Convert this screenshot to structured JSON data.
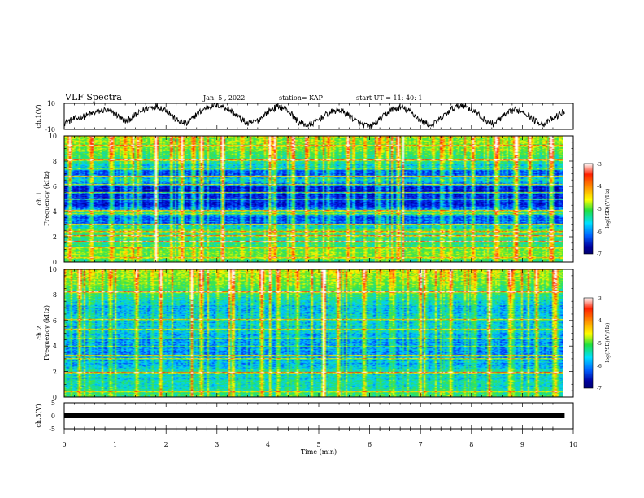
{
  "header": {
    "title": "VLF Spectra",
    "date": "Jan. 5 , 2022",
    "station": "station= KAP",
    "start": "start  UT =   11: 40: 1"
  },
  "x_axis": {
    "label": "Time  (min)",
    "ticks": [
      "0",
      "1",
      "2",
      "3",
      "4",
      "5",
      "6",
      "7",
      "8",
      "9",
      "10"
    ]
  },
  "panels": {
    "ch1_wave": {
      "ylabel": "ch.1(V)",
      "ticks": [
        "10",
        "-10"
      ]
    },
    "ch1_spec": {
      "ylabel1": "ch.1",
      "ylabel2": "Frequency  (kHz)",
      "ticks": [
        "0",
        "2",
        "4",
        "6",
        "8",
        "10"
      ]
    },
    "ch2_spec": {
      "ylabel1": "ch.2",
      "ylabel2": "Frequency  (kHz)",
      "ticks": [
        "0",
        "2",
        "4",
        "6",
        "8",
        "10"
      ]
    },
    "ch3_wave": {
      "ylabel": "ch.3(V)",
      "ticks": [
        "5",
        "0",
        "-5"
      ]
    }
  },
  "colorbar": {
    "label": "log(PSD)(V²/Hz)",
    "ticks": [
      "-3",
      "-4",
      "-5",
      "-6",
      "-7"
    ],
    "colors": [
      "#ffffff",
      "#ff2000",
      "#ffb000",
      "#ffff00",
      "#20e040",
      "#00e0ff",
      "#0060ff",
      "#0000a0",
      "#000070"
    ]
  },
  "chart_data": [
    {
      "type": "line",
      "name": "ch.1(V)",
      "xlim": [
        0,
        10
      ],
      "ylim": [
        -10,
        10
      ],
      "x_data_end": 9.83,
      "approx_values": [
        -5,
        -2,
        0,
        3,
        5,
        2,
        -4,
        1,
        6,
        8,
        5,
        -3,
        -6,
        2,
        7,
        9,
        6,
        0,
        -6,
        -3,
        4,
        8,
        4,
        -5,
        -7,
        -2,
        3,
        5,
        0,
        -6,
        -8,
        -2,
        5,
        7,
        3,
        -4,
        -7,
        -1,
        6,
        9,
        5,
        -2,
        -6,
        0,
        5,
        4,
        -3,
        -6,
        -1,
        4
      ],
      "color": "#000000"
    },
    {
      "type": "heatmap",
      "name": "ch.1 spectrogram",
      "xlim": [
        0,
        10
      ],
      "ylim": [
        0,
        10
      ],
      "ylabel": "Frequency  (kHz)",
      "colorbar_range": [
        -7,
        -3
      ],
      "profile_khz_to_level": [
        [
          0,
          0.45
        ],
        [
          0.5,
          0.55
        ],
        [
          1,
          0.5
        ],
        [
          1.5,
          0.45
        ],
        [
          2,
          0.42
        ],
        [
          2.5,
          0.5
        ],
        [
          3,
          0.25
        ],
        [
          3.5,
          0.22
        ],
        [
          4,
          0.4
        ],
        [
          4.5,
          0.12
        ],
        [
          5,
          0.18
        ],
        [
          5.5,
          0.1
        ],
        [
          6,
          0.16
        ],
        [
          6.5,
          0.4
        ],
        [
          7,
          0.18
        ],
        [
          7.5,
          0.35
        ],
        [
          8,
          0.45
        ],
        [
          8.5,
          0.5
        ],
        [
          9,
          0.55
        ],
        [
          10,
          0.6
        ]
      ],
      "spectral_lines_khz": [
        0.3,
        1.1,
        1.6,
        2.1,
        2.4,
        3.0,
        3.8,
        4.1,
        5.0,
        5.5,
        6.2,
        6.8,
        7.4,
        8.1,
        9.3
      ],
      "impulsive_times_min": [
        0.1,
        0.5,
        0.9,
        1.2,
        1.45,
        1.8,
        2.3,
        2.55,
        2.7,
        3.1,
        3.5,
        4.05,
        4.15,
        4.5,
        4.8,
        5.2,
        5.6,
        6.2,
        6.6,
        7.0,
        7.45,
        7.6,
        8.05,
        8.5,
        8.9,
        9.2,
        9.6
      ]
    },
    {
      "type": "heatmap",
      "name": "ch.2 spectrogram",
      "xlim": [
        0,
        10
      ],
      "ylim": [
        0,
        10
      ],
      "ylabel": "Frequency  (kHz)",
      "colorbar_range": [
        -7,
        -3
      ],
      "profile_khz_to_level": [
        [
          0,
          0.48
        ],
        [
          0.5,
          0.42
        ],
        [
          1,
          0.38
        ],
        [
          1.5,
          0.36
        ],
        [
          2,
          0.38
        ],
        [
          2.5,
          0.33
        ],
        [
          3,
          0.3
        ],
        [
          3.5,
          0.28
        ],
        [
          4,
          0.27
        ],
        [
          4.5,
          0.3
        ],
        [
          5,
          0.33
        ],
        [
          5.5,
          0.35
        ],
        [
          6,
          0.34
        ],
        [
          6.5,
          0.35
        ],
        [
          7,
          0.33
        ],
        [
          7.5,
          0.4
        ],
        [
          8,
          0.45
        ],
        [
          8.5,
          0.5
        ],
        [
          9,
          0.55
        ],
        [
          10,
          0.62
        ]
      ],
      "spectral_lines_khz": [
        0.4,
        1.9,
        3.0,
        3.3,
        4.0,
        4.6,
        5.3,
        6.1,
        8.3
      ],
      "impulsive_times_min": [
        0.3,
        0.9,
        1.4,
        1.9,
        2.5,
        2.7,
        3.3,
        3.9,
        4.2,
        4.6,
        5.1,
        5.4,
        5.9,
        6.5,
        7.0,
        7.6,
        8.1,
        8.4,
        8.8,
        9.3,
        9.7
      ]
    },
    {
      "type": "line",
      "name": "ch.3(V)",
      "xlim": [
        0,
        10
      ],
      "ylim": [
        -5,
        5
      ],
      "x_data_end": 9.83,
      "approx_values": [
        0,
        0
      ],
      "color": "#000000"
    }
  ]
}
